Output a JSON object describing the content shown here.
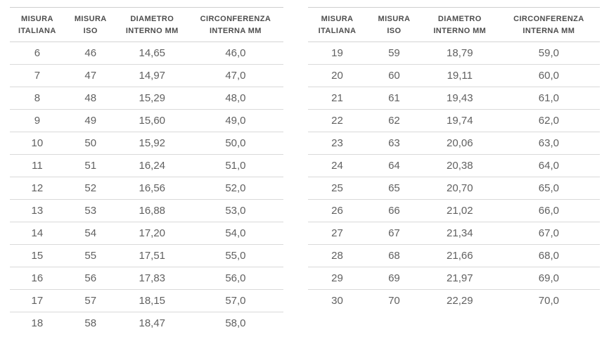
{
  "colors": {
    "background": "#ffffff",
    "header_text": "#4d4d4d",
    "cell_text": "#616161",
    "border": "#d4d4d4"
  },
  "chart_data": [
    {
      "type": "table",
      "columns": [
        "MISURA\nITALIANA",
        "MISURA\nISO",
        "DIAMETRO\nINTERNO MM",
        "CIRCONFERENZA\nINTERNA MM"
      ],
      "rows": [
        [
          "6",
          "46",
          "14,65",
          "46,0"
        ],
        [
          "7",
          "47",
          "14,97",
          "47,0"
        ],
        [
          "8",
          "48",
          "15,29",
          "48,0"
        ],
        [
          "9",
          "49",
          "15,60",
          "49,0"
        ],
        [
          "10",
          "50",
          "15,92",
          "50,0"
        ],
        [
          "11",
          "51",
          "16,24",
          "51,0"
        ],
        [
          "12",
          "52",
          "16,56",
          "52,0"
        ],
        [
          "13",
          "53",
          "16,88",
          "53,0"
        ],
        [
          "14",
          "54",
          "17,20",
          "54,0"
        ],
        [
          "15",
          "55",
          "17,51",
          "55,0"
        ],
        [
          "16",
          "56",
          "17,83",
          "56,0"
        ],
        [
          "17",
          "57",
          "18,15",
          "57,0"
        ],
        [
          "18",
          "58",
          "18,47",
          "58,0"
        ]
      ]
    },
    {
      "type": "table",
      "columns": [
        "MISURA\nITALIANA",
        "MISURA\nISO",
        "DIAMETRO\nINTERNO MM",
        "CIRCONFERENZA\nINTERNA MM"
      ],
      "rows": [
        [
          "19",
          "59",
          "18,79",
          "59,0"
        ],
        [
          "20",
          "60",
          "19,11",
          "60,0"
        ],
        [
          "21",
          "61",
          "19,43",
          "61,0"
        ],
        [
          "22",
          "62",
          "19,74",
          "62,0"
        ],
        [
          "23",
          "63",
          "20,06",
          "63,0"
        ],
        [
          "24",
          "64",
          "20,38",
          "64,0"
        ],
        [
          "25",
          "65",
          "20,70",
          "65,0"
        ],
        [
          "26",
          "66",
          "21,02",
          "66,0"
        ],
        [
          "27",
          "67",
          "21,34",
          "67,0"
        ],
        [
          "28",
          "68",
          "21,66",
          "68,0"
        ],
        [
          "29",
          "69",
          "21,97",
          "69,0"
        ],
        [
          "30",
          "70",
          "22,29",
          "70,0"
        ]
      ]
    }
  ]
}
